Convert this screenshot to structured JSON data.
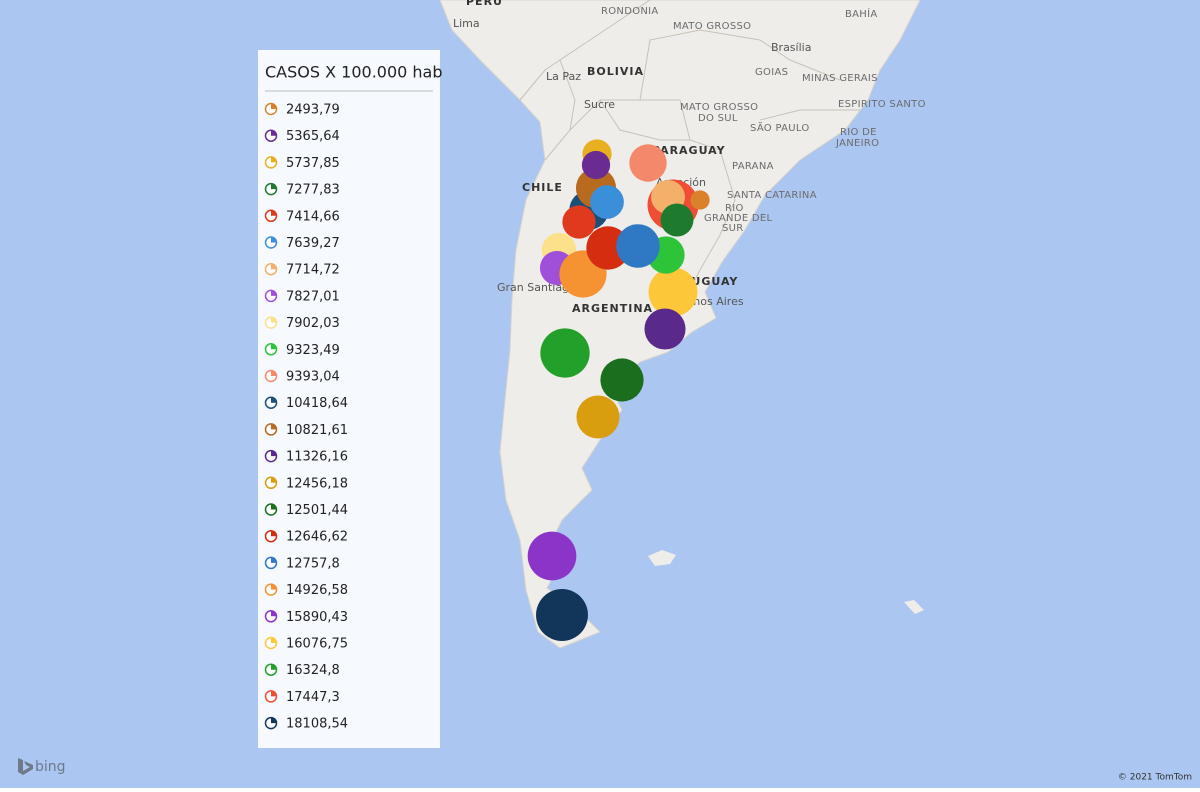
{
  "map_labels": {
    "peru": "PERU",
    "lima": "Lima",
    "rondonia": "RONDONIA",
    "mato_grosso": "MATO GROSSO",
    "bahia": "BAHÍA",
    "brasilia": "Brasília",
    "goias": "GOIAS",
    "minas_gerais": "MINAS GERAIS",
    "la_paz": "La Paz",
    "bolivia": "BOLIVIA",
    "sucre": "Sucre",
    "mato_grosso_do_sul_1": "MATO GROSSO",
    "mato_grosso_do_sul_2": "DO SUL",
    "espirito_santo": "ESPIRITO SANTO",
    "sao_paulo": "SÃO PAULO",
    "rio_de_janeiro_1": "RIO DE",
    "rio_de_janeiro_2": "JANEIRO",
    "paraguay": "PARAGUAY",
    "parana": "PARANA",
    "asuncion": "Asunción",
    "santa_catarina": "SANTA CATARINA",
    "rio_grande_1": "RIO",
    "rio_grande_2": "GRANDE DEL",
    "rio_grande_3": "SUR",
    "chile": "CHILE",
    "uruguay": "URUGUAY",
    "buenos_aires": "Buenos Aires",
    "santiago": "Gran Santiago",
    "argentina": "ARGENTINA"
  },
  "attribution": {
    "bing": "bing",
    "copyright": "© 2021 TomTom"
  },
  "legend": {
    "title": "CASOS X 100.000 hab",
    "items": [
      {
        "value": 2493.79,
        "label": "2493,79",
        "color": "#d9822b"
      },
      {
        "value": 5365.64,
        "label": "5365,64",
        "color": "#6a2c91"
      },
      {
        "value": 5737.85,
        "label": "5737,85",
        "color": "#e8b020"
      },
      {
        "value": 7277.83,
        "label": "7277,83",
        "color": "#1e7b2e"
      },
      {
        "value": 7414.66,
        "label": "7414,66",
        "color": "#e03a1e"
      },
      {
        "value": 7639.27,
        "label": "7639,27",
        "color": "#3b8fd9"
      },
      {
        "value": 7714.72,
        "label": "7714,72",
        "color": "#f4b06b"
      },
      {
        "value": 7827.01,
        "label": "7827,01",
        "color": "#a04fd8"
      },
      {
        "value": 7902.03,
        "label": "7902,03",
        "color": "#fde08a"
      },
      {
        "value": 9323.49,
        "label": "9323,49",
        "color": "#2ec43a"
      },
      {
        "value": 9393.04,
        "label": "9393,04",
        "color": "#f4886b"
      },
      {
        "value": 10418.64,
        "label": "10418,64",
        "color": "#1a4f7a"
      },
      {
        "value": 10821.61,
        "label": "10821,61",
        "color": "#b86a1f"
      },
      {
        "value": 11326.16,
        "label": "11326,16",
        "color": "#5a2a8a"
      },
      {
        "value": 12456.18,
        "label": "12456,18",
        "color": "#d89e10"
      },
      {
        "value": 12501.44,
        "label": "12501,44",
        "color": "#1a6e1e"
      },
      {
        "value": 12646.62,
        "label": "12646,62",
        "color": "#d42d10"
      },
      {
        "value": 12757.8,
        "label": "12757,8",
        "color": "#2f78c4"
      },
      {
        "value": 14926.58,
        "label": "14926,58",
        "color": "#f59332"
      },
      {
        "value": 15890.43,
        "label": "15890,43",
        "color": "#8b35c8"
      },
      {
        "value": 16076.75,
        "label": "16076,75",
        "color": "#fcc83a"
      },
      {
        "value": 16324.8,
        "label": "16324,8",
        "color": "#22a02a"
      },
      {
        "value": 17447.3,
        "label": "17447,3",
        "color": "#ef4d35"
      },
      {
        "value": 18108.54,
        "label": "18108,54",
        "color": "#11365a"
      }
    ]
  }
}
